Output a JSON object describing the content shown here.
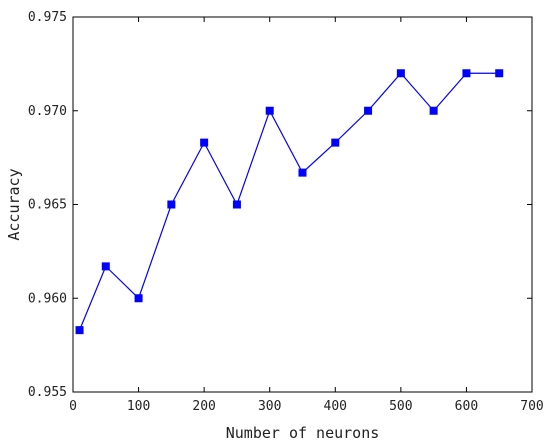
{
  "chart_data": {
    "type": "line",
    "title": "",
    "xlabel": "Number of neurons",
    "ylabel": "Accuracy",
    "xlim": [
      0,
      700
    ],
    "ylim": [
      0.955,
      0.975
    ],
    "xticks": [
      "0",
      "100",
      "200",
      "300",
      "400",
      "500",
      "600",
      "700"
    ],
    "yticks": [
      "0.955",
      "0.960",
      "0.965",
      "0.970",
      "0.975"
    ],
    "grid": false,
    "series": [
      {
        "color": "#0000ff",
        "marker": "square",
        "x": [
          10,
          50,
          100,
          150,
          200,
          250,
          300,
          350,
          400,
          450,
          500,
          550,
          600,
          650
        ],
        "y": [
          0.9583,
          0.9617,
          0.96,
          0.965,
          0.9683,
          0.965,
          0.97,
          0.9667,
          0.9683,
          0.97,
          0.972,
          0.97,
          0.972,
          0.972
        ]
      }
    ]
  }
}
